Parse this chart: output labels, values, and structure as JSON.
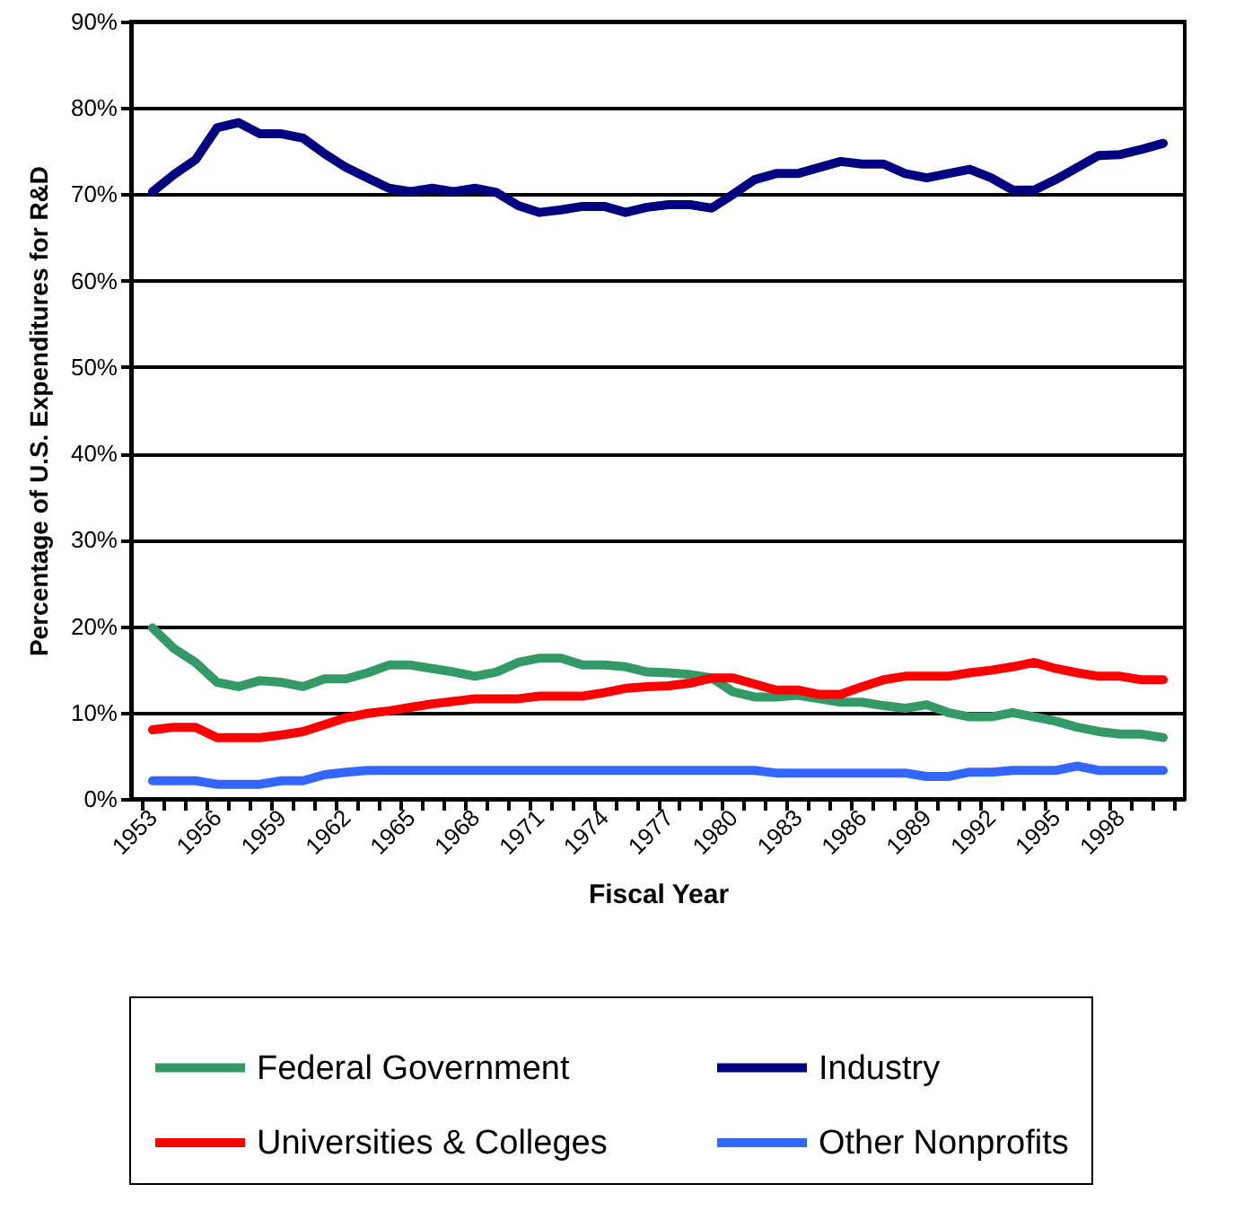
{
  "chart_data": {
    "type": "line",
    "xlabel": "Fiscal Year",
    "ylabel": "Percentage of U.S. Expenditures for R&D",
    "categories": [
      "1953",
      null,
      null,
      "1956",
      null,
      null,
      "1959",
      null,
      null,
      "1962",
      null,
      null,
      "1965",
      null,
      null,
      "1968",
      null,
      null,
      "1971",
      null,
      null,
      "1974",
      null,
      null,
      "1977",
      null,
      null,
      "1980",
      null,
      null,
      "1983",
      null,
      null,
      "1986",
      null,
      null,
      "1989",
      null,
      null,
      "1992",
      null,
      null,
      "1995",
      null,
      null,
      "1998",
      null,
      null
    ],
    "series": [
      {
        "name": "Federal Government",
        "color": "#339966",
        "values": [
          19.8,
          17.4,
          15.8,
          13.5,
          13.0,
          13.7,
          13.5,
          13.0,
          13.9,
          13.9,
          14.6,
          15.5,
          15.5,
          15.1,
          14.7,
          14.2,
          14.7,
          15.8,
          16.3,
          16.3,
          15.5,
          15.5,
          15.3,
          14.7,
          14.6,
          14.4,
          14.0,
          12.4,
          11.8,
          11.8,
          12.0,
          11.6,
          11.2,
          11.2,
          10.8,
          10.5,
          10.9,
          10.0,
          9.5,
          9.5,
          10.0,
          9.5,
          9.0,
          8.3,
          7.8,
          7.5,
          7.5,
          7.1
        ]
      },
      {
        "name": "Industry",
        "color": "#000080",
        "values": [
          70.3,
          72.3,
          74.0,
          77.7,
          78.3,
          77.0,
          77.0,
          76.5,
          74.7,
          73.1,
          71.9,
          70.7,
          70.3,
          70.7,
          70.3,
          70.7,
          70.2,
          68.7,
          67.9,
          68.2,
          68.6,
          68.6,
          67.9,
          68.5,
          68.8,
          68.8,
          68.4,
          70.0,
          71.7,
          72.4,
          72.4,
          73.1,
          73.8,
          73.5,
          73.5,
          72.4,
          71.9,
          72.4,
          72.9,
          71.9,
          70.5,
          70.5,
          71.7,
          73.1,
          74.5,
          74.6,
          75.2,
          75.9
        ]
      },
      {
        "name": "Universities & Colleges",
        "color": "#ff0000",
        "values": [
          8.0,
          8.3,
          8.3,
          7.1,
          7.1,
          7.1,
          7.4,
          7.8,
          8.6,
          9.4,
          9.9,
          10.2,
          10.6,
          11.0,
          11.3,
          11.6,
          11.6,
          11.6,
          11.9,
          11.9,
          11.9,
          12.3,
          12.8,
          13.0,
          13.1,
          13.4,
          14.0,
          14.0,
          13.3,
          12.6,
          12.6,
          12.1,
          12.1,
          13.0,
          13.8,
          14.2,
          14.2,
          14.2,
          14.6,
          14.9,
          15.3,
          15.8,
          15.1,
          14.6,
          14.2,
          14.2,
          13.8,
          13.8
        ]
      },
      {
        "name": "Other Nonprofits",
        "color": "#3366ff",
        "values": [
          2.1,
          2.1,
          2.1,
          1.7,
          1.7,
          1.7,
          2.1,
          2.1,
          2.8,
          3.1,
          3.3,
          3.3,
          3.3,
          3.3,
          3.3,
          3.3,
          3.3,
          3.3,
          3.3,
          3.3,
          3.3,
          3.3,
          3.3,
          3.3,
          3.3,
          3.3,
          3.3,
          3.3,
          3.3,
          3.0,
          3.0,
          3.0,
          3.0,
          3.0,
          3.0,
          3.0,
          2.6,
          2.6,
          3.1,
          3.1,
          3.3,
          3.3,
          3.3,
          3.8,
          3.3,
          3.3,
          3.3,
          3.3
        ]
      }
    ],
    "ylim": [
      0,
      90
    ],
    "yticks": [
      {
        "value": 0,
        "label": "0%"
      },
      {
        "value": 10,
        "label": "10%"
      },
      {
        "value": 20,
        "label": "20%"
      },
      {
        "value": 30,
        "label": "30%"
      },
      {
        "value": 40,
        "label": "40%"
      },
      {
        "value": 50,
        "label": "50%"
      },
      {
        "value": 60,
        "label": "60%"
      },
      {
        "value": 70,
        "label": "70%"
      },
      {
        "value": 80,
        "label": "80%"
      },
      {
        "value": 90,
        "label": "90%"
      }
    ],
    "grid": "y",
    "legend": "bottom",
    "line_style": "solid"
  }
}
